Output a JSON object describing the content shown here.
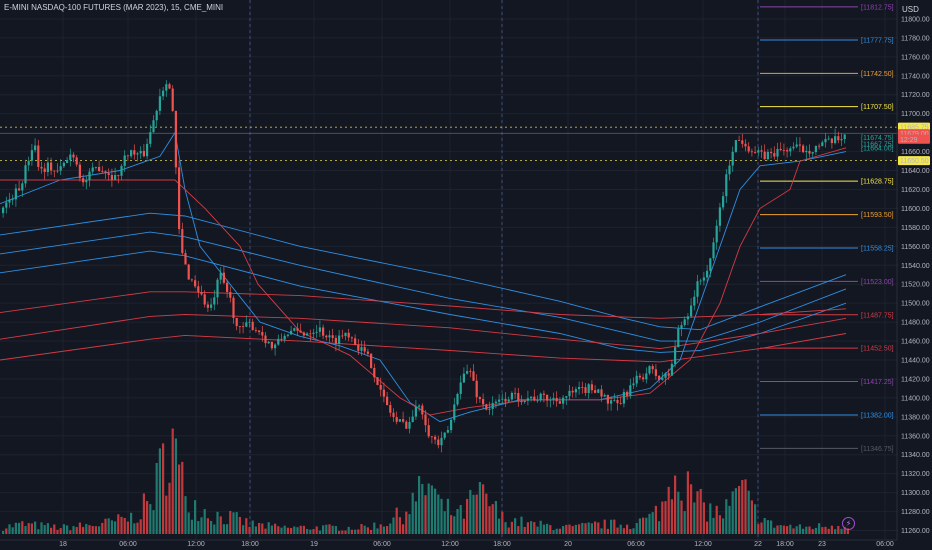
{
  "header": {
    "title": "E-MINI NASDAQ-100 FUTURES (MAR 2023), 15, CME_MINI",
    "currency": "USD"
  },
  "colors": {
    "background": "#131722",
    "up": "#26a69a",
    "down": "#ef5350",
    "vol_up": "#1f7a70",
    "vol_down": "#c0393d",
    "ma_blue": "#2f8ee0",
    "ma_red": "#d23b45",
    "purple": "#8e44ad",
    "orange": "#f0a030",
    "yellow": "#f7e84a"
  },
  "chart_data": {
    "type": "candlestick",
    "title": "E-MINI NASDAQ-100 FUTURES (MAR 2023), 15, CME_MINI",
    "ylim": [
      11250,
      11820
    ],
    "y_ticks": [
      11260,
      11280,
      11300,
      11320,
      11340,
      11360,
      11380,
      11400,
      11420,
      11440,
      11460,
      11480,
      11500,
      11520,
      11540,
      11560,
      11580,
      11600,
      11620,
      11640,
      11660,
      11680,
      11700,
      11720,
      11740,
      11760,
      11780,
      11800
    ],
    "y_tick_labels": [
      "11260.00",
      "11280.00",
      "11300.00",
      "11320.00",
      "11340.00",
      "11360.00",
      "11380.00",
      "11400.00",
      "11420.00",
      "11440.00",
      "11460.00",
      "11480.00",
      "11500.00",
      "11520.00",
      "11540.00",
      "11560.00",
      "11580.00",
      "11600.00",
      "11620.00",
      "11640.00",
      "11660.00",
      "11680.00",
      "11700.00",
      "11720.00",
      "11740.00",
      "11760.00",
      "11780.00",
      "11800.00"
    ],
    "x_ticks": [
      "18",
      "06:00",
      "12:00",
      "18:00",
      "19",
      "06:00",
      "12:00",
      "18:00",
      "20",
      "06:00",
      "12:00",
      "22",
      "18:00",
      "23",
      "06:00"
    ],
    "session_breaks": [
      "18:00",
      "18:00",
      "22"
    ],
    "price_keypoints": [
      [
        0,
        11595
      ],
      [
        12,
        11610
      ],
      [
        22,
        11622
      ],
      [
        30,
        11650
      ],
      [
        36,
        11672
      ],
      [
        42,
        11640
      ],
      [
        50,
        11645
      ],
      [
        60,
        11638
      ],
      [
        75,
        11660
      ],
      [
        85,
        11626
      ],
      [
        100,
        11645
      ],
      [
        118,
        11632
      ],
      [
        130,
        11660
      ],
      [
        145,
        11655
      ],
      [
        155,
        11690
      ],
      [
        162,
        11720
      ],
      [
        170,
        11740
      ],
      [
        175,
        11700
      ],
      [
        182,
        11560
      ],
      [
        190,
        11530
      ],
      [
        200,
        11515
      ],
      [
        212,
        11490
      ],
      [
        222,
        11530
      ],
      [
        232,
        11505
      ],
      [
        240,
        11470
      ],
      [
        252,
        11478
      ],
      [
        262,
        11470
      ],
      [
        275,
        11452
      ],
      [
        290,
        11470
      ],
      [
        305,
        11468
      ],
      [
        320,
        11474
      ],
      [
        335,
        11460
      ],
      [
        350,
        11470
      ],
      [
        360,
        11455
      ],
      [
        372,
        11440
      ],
      [
        385,
        11400
      ],
      [
        398,
        11375
      ],
      [
        410,
        11372
      ],
      [
        422,
        11395
      ],
      [
        432,
        11360
      ],
      [
        442,
        11350
      ],
      [
        452,
        11370
      ],
      [
        462,
        11420
      ],
      [
        472,
        11430
      ],
      [
        480,
        11400
      ],
      [
        490,
        11388
      ],
      [
        500,
        11395
      ],
      [
        512,
        11402
      ],
      [
        528,
        11400
      ],
      [
        545,
        11400
      ],
      [
        560,
        11398
      ],
      [
        575,
        11405
      ],
      [
        590,
        11410
      ],
      [
        600,
        11410
      ],
      [
        610,
        11395
      ],
      [
        620,
        11392
      ],
      [
        630,
        11408
      ],
      [
        640,
        11420
      ],
      [
        652,
        11430
      ],
      [
        662,
        11420
      ],
      [
        672,
        11425
      ],
      [
        680,
        11470
      ],
      [
        690,
        11490
      ],
      [
        700,
        11520
      ],
      [
        712,
        11540
      ],
      [
        720,
        11590
      ],
      [
        728,
        11630
      ],
      [
        736,
        11670
      ],
      [
        745,
        11672
      ],
      [
        755,
        11660
      ],
      [
        765,
        11655
      ],
      [
        780,
        11660
      ],
      [
        795,
        11664
      ],
      [
        810,
        11662
      ],
      [
        825,
        11668
      ],
      [
        840,
        11672
      ],
      [
        846,
        11679
      ]
    ],
    "volume_keypoints": [
      [
        0,
        2
      ],
      [
        20,
        3
      ],
      [
        60,
        2
      ],
      [
        100,
        3
      ],
      [
        130,
        5
      ],
      [
        150,
        10
      ],
      [
        162,
        22
      ],
      [
        170,
        32
      ],
      [
        178,
        18
      ],
      [
        190,
        10
      ],
      [
        210,
        6
      ],
      [
        230,
        5
      ],
      [
        250,
        3
      ],
      [
        280,
        2
      ],
      [
        320,
        2
      ],
      [
        360,
        2
      ],
      [
        380,
        3
      ],
      [
        400,
        6
      ],
      [
        418,
        12
      ],
      [
        428,
        16
      ],
      [
        440,
        8
      ],
      [
        460,
        6
      ],
      [
        476,
        12
      ],
      [
        488,
        10
      ],
      [
        500,
        5
      ],
      [
        530,
        3
      ],
      [
        570,
        2
      ],
      [
        600,
        3
      ],
      [
        630,
        3
      ],
      [
        650,
        5
      ],
      [
        665,
        10
      ],
      [
        672,
        23
      ],
      [
        680,
        18
      ],
      [
        690,
        12
      ],
      [
        700,
        9
      ],
      [
        712,
        7
      ],
      [
        720,
        6
      ],
      [
        732,
        10
      ],
      [
        742,
        14
      ],
      [
        750,
        8
      ],
      [
        770,
        3
      ],
      [
        800,
        2
      ],
      [
        846,
        3
      ]
    ],
    "moving_averages": [
      {
        "color": "ma_blue",
        "points": [
          [
            0,
            11572
          ],
          [
            150,
            11595
          ],
          [
            185,
            11592
          ],
          [
            300,
            11560
          ],
          [
            450,
            11528
          ],
          [
            560,
            11502
          ],
          [
            620,
            11485
          ],
          [
            660,
            11475
          ],
          [
            700,
            11472
          ],
          [
            760,
            11496
          ],
          [
            846,
            11530
          ]
        ]
      },
      {
        "color": "ma_blue",
        "points": [
          [
            0,
            11552
          ],
          [
            150,
            11575
          ],
          [
            185,
            11570
          ],
          [
            300,
            11540
          ],
          [
            450,
            11505
          ],
          [
            560,
            11485
          ],
          [
            620,
            11470
          ],
          [
            660,
            11460
          ],
          [
            700,
            11460
          ],
          [
            760,
            11480
          ],
          [
            846,
            11515
          ]
        ]
      },
      {
        "color": "ma_blue",
        "points": [
          [
            0,
            11532
          ],
          [
            150,
            11555
          ],
          [
            185,
            11550
          ],
          [
            300,
            11518
          ],
          [
            450,
            11488
          ],
          [
            560,
            11468
          ],
          [
            620,
            11452
          ],
          [
            660,
            11448
          ],
          [
            700,
            11450
          ],
          [
            760,
            11468
          ],
          [
            846,
            11500
          ]
        ]
      },
      {
        "color": "ma_red",
        "points": [
          [
            0,
            11490
          ],
          [
            150,
            11512
          ],
          [
            185,
            11512
          ],
          [
            300,
            11508
          ],
          [
            450,
            11497
          ],
          [
            560,
            11488
          ],
          [
            660,
            11484
          ],
          [
            760,
            11488
          ],
          [
            846,
            11494
          ]
        ]
      },
      {
        "color": "ma_red",
        "points": [
          [
            0,
            11462
          ],
          [
            150,
            11486
          ],
          [
            185,
            11488
          ],
          [
            300,
            11484
          ],
          [
            450,
            11474
          ],
          [
            560,
            11462
          ],
          [
            660,
            11452
          ],
          [
            760,
            11468
          ],
          [
            846,
            11484
          ]
        ]
      },
      {
        "color": "ma_red",
        "points": [
          [
            0,
            11440
          ],
          [
            150,
            11462
          ],
          [
            185,
            11466
          ],
          [
            300,
            11460
          ],
          [
            450,
            11450
          ],
          [
            560,
            11442
          ],
          [
            660,
            11438
          ],
          [
            760,
            11452
          ],
          [
            846,
            11468
          ]
        ]
      },
      {
        "color": "ma_blue",
        "points": [
          [
            0,
            11605
          ],
          [
            60,
            11630
          ],
          [
            120,
            11640
          ],
          [
            160,
            11655
          ],
          [
            175,
            11680
          ],
          [
            185,
            11620
          ],
          [
            200,
            11560
          ],
          [
            230,
            11520
          ],
          [
            260,
            11480
          ],
          [
            300,
            11465
          ],
          [
            340,
            11455
          ],
          [
            380,
            11440
          ],
          [
            410,
            11395
          ],
          [
            440,
            11375
          ],
          [
            470,
            11385
          ],
          [
            520,
            11398
          ],
          [
            600,
            11398
          ],
          [
            650,
            11410
          ],
          [
            680,
            11440
          ],
          [
            700,
            11500
          ],
          [
            720,
            11560
          ],
          [
            740,
            11620
          ],
          [
            760,
            11645
          ],
          [
            800,
            11650
          ],
          [
            846,
            11660
          ]
        ]
      },
      {
        "color": "ma_red",
        "points": [
          [
            0,
            11630
          ],
          [
            175,
            11630
          ],
          [
            205,
            11600
          ],
          [
            240,
            11560
          ],
          [
            258,
            11520
          ],
          [
            300,
            11470
          ],
          [
            350,
            11445
          ],
          [
            400,
            11400
          ],
          [
            430,
            11382
          ],
          [
            470,
            11390
          ],
          [
            530,
            11398
          ],
          [
            600,
            11398
          ],
          [
            650,
            11405
          ],
          [
            690,
            11440
          ],
          [
            720,
            11500
          ],
          [
            740,
            11560
          ],
          [
            760,
            11600
          ],
          [
            790,
            11620
          ],
          [
            800,
            11650
          ],
          [
            846,
            11664
          ]
        ]
      }
    ],
    "levels": [
      {
        "value": 11812.75,
        "label": "[11812.75]",
        "color": "purple"
      },
      {
        "value": 11777.75,
        "label": "[11777.75]",
        "color": "ma_blue"
      },
      {
        "value": 11742.5,
        "label": "[11742.50]",
        "color": "orange"
      },
      {
        "value": 11707.5,
        "label": "[11707.50]",
        "color": "yellow"
      },
      {
        "value": 11628.75,
        "label": "[11628.75]",
        "color": "yellow"
      },
      {
        "value": 11593.5,
        "label": "[11593.50]",
        "color": "orange"
      },
      {
        "value": 11558.25,
        "label": "[11558.25]",
        "color": "ma_blue"
      },
      {
        "value": 11523.0,
        "label": "[11523.00]",
        "color": "purple"
      },
      {
        "value": 11487.75,
        "label": "[11487.75]",
        "color": "ma_red"
      },
      {
        "value": 11452.5,
        "label": "[11452.50]",
        "color": "ma_red"
      },
      {
        "value": 11417.25,
        "label": "[11417.25]",
        "color": "purple"
      },
      {
        "value": 11382.0,
        "label": "[11382.00]",
        "color": "ma_blue"
      },
      {
        "value": 11346.75,
        "label": "[11346.75]",
        "color": "dark"
      }
    ],
    "reference_lines": [
      {
        "value": 11685.75,
        "color": "#f7e84a"
      },
      {
        "value": 11650.5,
        "color": "#f7e84a"
      },
      {
        "value": 11679.0,
        "color": "#ef5350"
      }
    ],
    "price_badges": [
      {
        "text": "11685.75",
        "value": 11685.75,
        "bg": "#f7e84a",
        "fg": "#131722"
      },
      {
        "text": "11679.00",
        "value": 11679.0,
        "bg": "#ef5350",
        "fg": "#ffffff"
      },
      {
        "text": "12:29",
        "value": 11673.0,
        "bg": "#ef5350",
        "fg": "#ffffff"
      },
      {
        "text": "11650.50",
        "value": 11650.5,
        "bg": "#f7e84a",
        "fg": "#131722"
      }
    ],
    "mini_labels": [
      {
        "text": "[11674.75]",
        "value": 11674.75,
        "color": "#26a69a"
      },
      {
        "text": "[11667.75]",
        "value": 11667.75,
        "color": "#26a69a"
      },
      {
        "text": "[11664.00]",
        "value": 11664.0,
        "color": "#26a69a"
      }
    ]
  }
}
